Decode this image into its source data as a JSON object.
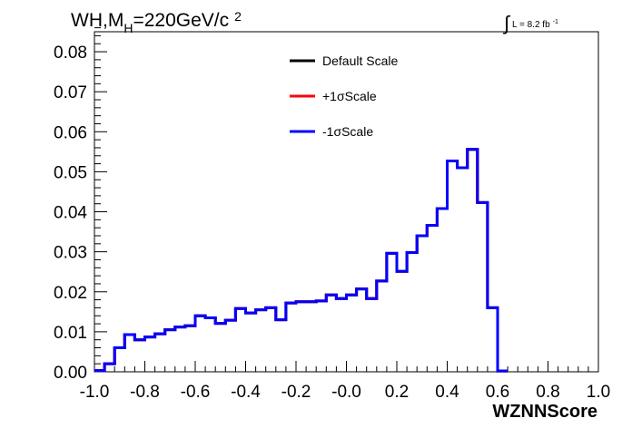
{
  "chart_data": {
    "type": "line",
    "title_parts": {
      "main": "WH,M",
      "sub": "H",
      "rest": "=220GeV/c",
      "sup": "2"
    },
    "lumi_parts": {
      "integral": "∫",
      "text": "L = 8.2 fb",
      "sup": "-1"
    },
    "xlabel": "WZNNScore",
    "ylabel": "",
    "xlim": [
      -1.0,
      1.0
    ],
    "ylim": [
      0.0,
      0.085
    ],
    "x_ticks": [
      "-1.0",
      "-0.8",
      "-0.6",
      "-0.4",
      "-0.2",
      "-0.0",
      "0.2",
      "0.4",
      "0.6",
      "0.8",
      "1.0"
    ],
    "y_ticks": [
      "0.00",
      "0.01",
      "0.02",
      "0.03",
      "0.04",
      "0.05",
      "0.06",
      "0.07",
      "0.08"
    ],
    "bin_width": 0.04,
    "series": [
      {
        "name": "Default Scale",
        "color": "#000000",
        "values": [
          0.0003,
          0.002,
          0.006,
          0.0093,
          0.008,
          0.0087,
          0.0095,
          0.0105,
          0.0112,
          0.0115,
          0.014,
          0.0135,
          0.0121,
          0.0129,
          0.0158,
          0.0147,
          0.0155,
          0.016,
          0.013,
          0.0172,
          0.0175,
          0.0175,
          0.0177,
          0.0192,
          0.0183,
          0.0192,
          0.0207,
          0.0183,
          0.0227,
          0.0296,
          0.0251,
          0.0298,
          0.034,
          0.0366,
          0.0408,
          0.0527,
          0.051,
          0.0556,
          0.0423,
          0.016,
          0.0002
        ]
      },
      {
        "name": "+1σScale",
        "color": "#ff0000",
        "values": [
          0.0003,
          0.002,
          0.006,
          0.0093,
          0.008,
          0.0087,
          0.0095,
          0.0105,
          0.0112,
          0.0115,
          0.014,
          0.0135,
          0.0121,
          0.0129,
          0.0158,
          0.0147,
          0.0155,
          0.016,
          0.013,
          0.0172,
          0.0175,
          0.0175,
          0.0177,
          0.0192,
          0.0183,
          0.0192,
          0.0207,
          0.0183,
          0.0227,
          0.0296,
          0.0251,
          0.0298,
          0.034,
          0.0366,
          0.0408,
          0.0527,
          0.051,
          0.0556,
          0.0423,
          0.016,
          0.0002
        ]
      },
      {
        "name": "-1σScale",
        "color": "#0000ff",
        "values": [
          0.0003,
          0.002,
          0.006,
          0.0093,
          0.008,
          0.0087,
          0.0095,
          0.0105,
          0.0112,
          0.0115,
          0.014,
          0.0135,
          0.0121,
          0.0129,
          0.0158,
          0.0147,
          0.0155,
          0.016,
          0.013,
          0.0172,
          0.0175,
          0.0175,
          0.0177,
          0.0192,
          0.0183,
          0.0192,
          0.0207,
          0.0183,
          0.0227,
          0.0296,
          0.0251,
          0.0298,
          0.034,
          0.0366,
          0.0408,
          0.0527,
          0.051,
          0.0556,
          0.0423,
          0.016,
          0.0002
        ]
      }
    ],
    "legend_position": "top-center"
  }
}
